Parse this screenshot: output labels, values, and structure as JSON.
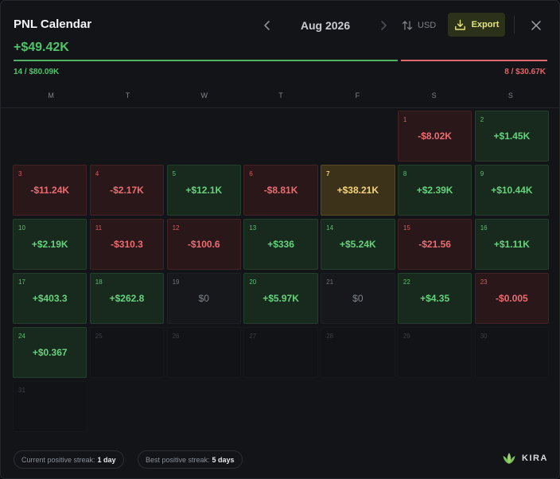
{
  "header": {
    "title": "PNL Calendar",
    "month": "Aug 2026",
    "currency": "USD",
    "export_label": "Export"
  },
  "summary": {
    "total": "+$49.42K",
    "positive": "14 / $80.09K",
    "negative": "8 / $30.67K"
  },
  "weekdays": [
    "M",
    "T",
    "W",
    "T",
    "F",
    "S",
    "S"
  ],
  "leading_blanks": 5,
  "days": [
    {
      "day": "1",
      "value": "-$8.02K",
      "status": "neg"
    },
    {
      "day": "2",
      "value": "+$1.45K",
      "status": "pos"
    },
    {
      "day": "3",
      "value": "-$11.24K",
      "status": "neg"
    },
    {
      "day": "4",
      "value": "-$2.17K",
      "status": "neg"
    },
    {
      "day": "5",
      "value": "+$12.1K",
      "status": "pos"
    },
    {
      "day": "6",
      "value": "-$8.81K",
      "status": "neg"
    },
    {
      "day": "7",
      "value": "+$38.21K",
      "status": "best"
    },
    {
      "day": "8",
      "value": "+$2.39K",
      "status": "pos"
    },
    {
      "day": "9",
      "value": "+$10.44K",
      "status": "pos"
    },
    {
      "day": "10",
      "value": "+$2.19K",
      "status": "pos"
    },
    {
      "day": "11",
      "value": "-$310.3",
      "status": "neg"
    },
    {
      "day": "12",
      "value": "-$100.6",
      "status": "neg"
    },
    {
      "day": "13",
      "value": "+$336",
      "status": "pos"
    },
    {
      "day": "14",
      "value": "+$5.24K",
      "status": "pos"
    },
    {
      "day": "15",
      "value": "-$21.56",
      "status": "neg"
    },
    {
      "day": "16",
      "value": "+$1.11K",
      "status": "pos"
    },
    {
      "day": "17",
      "value": "+$403.3",
      "status": "pos"
    },
    {
      "day": "18",
      "value": "+$262.8",
      "status": "pos"
    },
    {
      "day": "19",
      "value": "$0",
      "status": "zero"
    },
    {
      "day": "20",
      "value": "+$5.97K",
      "status": "pos"
    },
    {
      "day": "21",
      "value": "$0",
      "status": "zero"
    },
    {
      "day": "22",
      "value": "+$4.35",
      "status": "pos"
    },
    {
      "day": "23",
      "value": "-$0.005",
      "status": "neg"
    },
    {
      "day": "24",
      "value": "+$0.367",
      "status": "pos"
    },
    {
      "day": "25",
      "value": "",
      "status": "empty"
    },
    {
      "day": "26",
      "value": "",
      "status": "empty"
    },
    {
      "day": "27",
      "value": "",
      "status": "empty"
    },
    {
      "day": "28",
      "value": "",
      "status": "empty"
    },
    {
      "day": "29",
      "value": "",
      "status": "empty"
    },
    {
      "day": "30",
      "value": "",
      "status": "empty"
    },
    {
      "day": "31",
      "value": "",
      "status": "empty"
    }
  ],
  "footer": {
    "current_streak_label": "Current positive streak:",
    "current_streak_value": "1 day",
    "best_streak_label": "Best positive streak:",
    "best_streak_value": "5 days",
    "brand": "KIRA"
  },
  "icons": {
    "prev": "chevron-left-icon",
    "next": "chevron-right-icon",
    "currency": "sort-arrows-icon",
    "export": "download-icon",
    "close": "close-icon",
    "brand": "leaf-logo-icon"
  },
  "colors": {
    "positive": "#4fc46a",
    "negative": "#e0666a",
    "best": "#f5d37b",
    "export_text": "#e6e57b"
  }
}
